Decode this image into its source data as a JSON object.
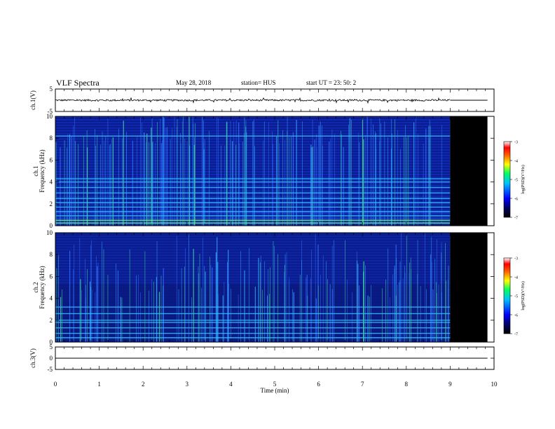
{
  "header": {
    "title": "VLF Spectra",
    "date": "May 28, 2018",
    "station": "station= HUS",
    "start": "start  UT =   23: 50: 2"
  },
  "chart_data": [
    {
      "type": "line",
      "panel": "ch1-waveform",
      "ylabel": "ch.1(V)",
      "ylim": [
        -5,
        5
      ],
      "yticks": [
        "5",
        "-5"
      ],
      "xlim": [
        0,
        10
      ],
      "data_end_min": 9.0,
      "baseline_v": 0.0,
      "noise_amplitude_v": 0.4
    },
    {
      "type": "heatmap",
      "panel": "ch1-spectrogram",
      "ylabel": "ch.1\nFrequency (kHz)",
      "ylim": [
        0,
        10
      ],
      "yticks": [
        "0",
        "2",
        "4",
        "6",
        "8",
        "10"
      ],
      "xlim": [
        0,
        10
      ],
      "data_end_min": 9.0,
      "no_data_end_min": 9.85,
      "colorbar": {
        "label": "log(PSD)(V²/Hz)",
        "range": [
          -7,
          -3
        ],
        "ticks": [
          "-3",
          "-4",
          "-5",
          "-6",
          "-7"
        ]
      },
      "horizontal_lines_khz": [
        0.25,
        0.5,
        0.9,
        1.3,
        1.7,
        2.1,
        2.5,
        3.0,
        3.5,
        4.0,
        4.3,
        8.2
      ]
    },
    {
      "type": "heatmap",
      "panel": "ch2-spectrogram",
      "ylabel": "ch.2\nFrequency (kHz)",
      "ylim": [
        0,
        10
      ],
      "yticks": [
        "0",
        "2",
        "4",
        "6",
        "8",
        "10"
      ],
      "xlim": [
        0,
        10
      ],
      "data_end_min": 9.0,
      "no_data_end_min": 9.85,
      "colorbar": {
        "label": "log(PSD)(V²/Hz)",
        "range": [
          -7,
          -3
        ],
        "ticks": [
          "-3",
          "-4",
          "-5",
          "-6",
          "-7"
        ]
      },
      "horizontal_lines_khz": [
        0.4,
        0.8,
        1.3,
        1.8,
        2.0,
        2.6,
        3.2
      ]
    },
    {
      "type": "line",
      "panel": "ch3-waveform",
      "ylabel": "ch.3(V)",
      "ylim": [
        -5,
        5
      ],
      "yticks": [
        "5",
        "0",
        "-5"
      ],
      "xlim": [
        0,
        10
      ],
      "baseline_v": 0.0,
      "xlabel": "Time (min)",
      "xticks": [
        "0",
        "1",
        "2",
        "3",
        "4",
        "5",
        "6",
        "7",
        "8",
        "9",
        "10"
      ]
    }
  ],
  "colors": {
    "spectrogram_background": "#0a1a8c",
    "no_data": "#000000",
    "line": "#000000"
  }
}
